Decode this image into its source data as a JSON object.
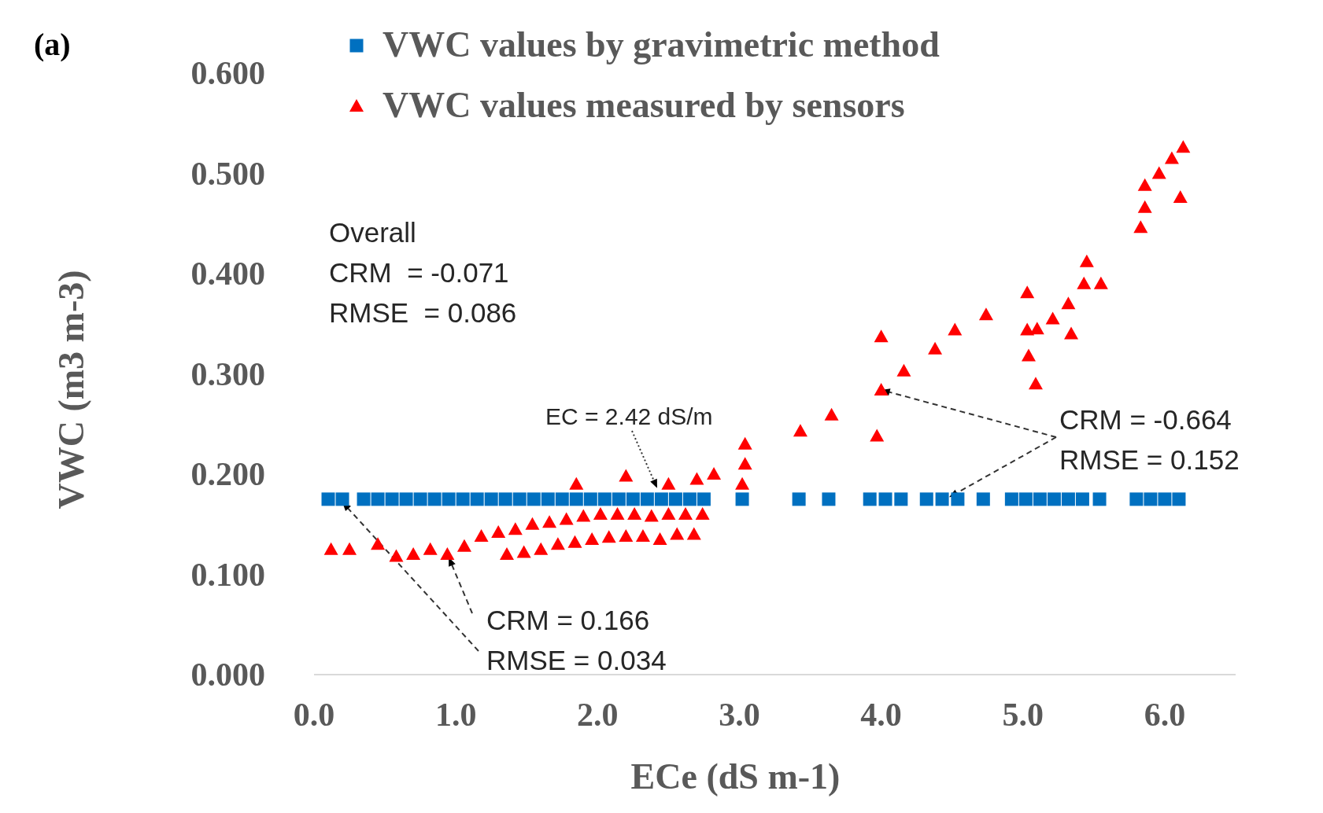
{
  "chart_data": {
    "type": "scatter",
    "xlabel": "ECe (dS m-1)",
    "ylabel": "VWC (m3 m-3)",
    "xlim": [
      0,
      6.5
    ],
    "ylim": [
      0,
      0.6
    ],
    "xticks": [
      {
        "value": 0,
        "label": "0.0"
      },
      {
        "value": 1,
        "label": "1.0"
      },
      {
        "value": 2,
        "label": "2.0"
      },
      {
        "value": 3,
        "label": "3.0"
      },
      {
        "value": 4,
        "label": "4.0"
      },
      {
        "value": 5,
        "label": "5.0"
      },
      {
        "value": 6,
        "label": "6.0"
      }
    ],
    "yticks": [
      {
        "value": 0,
        "label": "0.000"
      },
      {
        "value": 0.1,
        "label": "0.100"
      },
      {
        "value": 0.2,
        "label": "0.200"
      },
      {
        "value": 0.3,
        "label": "0.300"
      },
      {
        "value": 0.4,
        "label": "0.400"
      },
      {
        "value": 0.5,
        "label": "0.500"
      },
      {
        "value": 0.6,
        "label": "0.600"
      }
    ],
    "legend": "top",
    "grid": false,
    "annotations": [
      "(a)",
      "Overall\nCRM  = -0.071\nRMSE  = 0.086",
      "EC = 2.42 dS/m",
      {
        "text": "CRM = 0.166\nRMSE = 0.034",
        "x": 0.2,
        "y": 0.172
      },
      {
        "text": "CRM = -0.664\nRMSE = 0.152",
        "x": 4.0,
        "y": 0.284
      }
    ],
    "series": [
      {
        "name": "VWC values by gravimetric method",
        "color": "#0070c0",
        "marker": "square",
        "x": [
          0.1,
          0.2,
          0.35,
          0.45,
          0.55,
          0.65,
          0.75,
          0.85,
          0.95,
          1.05,
          1.15,
          1.25,
          1.35,
          1.45,
          1.55,
          1.65,
          1.75,
          1.85,
          1.95,
          2.05,
          2.15,
          2.25,
          2.35,
          2.45,
          2.55,
          2.65,
          2.75,
          3.02,
          3.42,
          3.63,
          3.92,
          4.03,
          4.14,
          4.32,
          4.43,
          4.54,
          4.72,
          4.92,
          5.02,
          5.12,
          5.22,
          5.32,
          5.42,
          5.54,
          5.8,
          5.9,
          6.0,
          6.1
        ],
        "values": [
          0.175,
          0.175,
          0.175,
          0.175,
          0.175,
          0.175,
          0.175,
          0.175,
          0.175,
          0.175,
          0.175,
          0.175,
          0.175,
          0.175,
          0.175,
          0.175,
          0.175,
          0.175,
          0.175,
          0.175,
          0.175,
          0.175,
          0.175,
          0.175,
          0.175,
          0.175,
          0.175,
          0.175,
          0.175,
          0.175,
          0.175,
          0.175,
          0.175,
          0.175,
          0.175,
          0.175,
          0.175,
          0.175,
          0.175,
          0.175,
          0.175,
          0.175,
          0.175,
          0.175,
          0.175,
          0.175,
          0.175,
          0.175
        ]
      },
      {
        "name": "VWC values measured by sensors",
        "color": "#ff0000",
        "marker": "triangle",
        "x": [
          0.12,
          0.25,
          0.45,
          0.58,
          0.7,
          0.82,
          0.94,
          1.06,
          1.18,
          1.3,
          1.42,
          1.54,
          1.66,
          1.78,
          1.9,
          2.02,
          2.14,
          2.26,
          2.38,
          2.5,
          2.62,
          2.74,
          1.36,
          1.48,
          1.6,
          1.72,
          1.84,
          1.96,
          2.08,
          2.2,
          2.32,
          2.44,
          2.56,
          2.68,
          1.85,
          2.2,
          2.5,
          2.7,
          2.82,
          3.04,
          3.04,
          3.02,
          3.43,
          3.65,
          3.97,
          4.0,
          4.16,
          4.0,
          4.38,
          4.52,
          4.74,
          5.03,
          5.03,
          5.04,
          5.09,
          5.1,
          5.21,
          5.32,
          5.43,
          5.45,
          5.55,
          5.34,
          5.83,
          5.86,
          5.86,
          5.96,
          6.05,
          6.13,
          6.11
        ],
        "values": [
          0.125,
          0.125,
          0.13,
          0.118,
          0.12,
          0.125,
          0.12,
          0.128,
          0.138,
          0.142,
          0.145,
          0.15,
          0.152,
          0.155,
          0.158,
          0.16,
          0.16,
          0.16,
          0.158,
          0.16,
          0.16,
          0.16,
          0.12,
          0.122,
          0.125,
          0.13,
          0.132,
          0.135,
          0.137,
          0.138,
          0.138,
          0.135,
          0.14,
          0.14,
          0.19,
          0.198,
          0.19,
          0.195,
          0.2,
          0.23,
          0.21,
          0.19,
          0.243,
          0.259,
          0.238,
          0.284,
          0.303,
          0.337,
          0.325,
          0.344,
          0.359,
          0.381,
          0.344,
          0.318,
          0.29,
          0.345,
          0.355,
          0.37,
          0.39,
          0.412,
          0.39,
          0.34,
          0.446,
          0.466,
          0.488,
          0.5,
          0.515,
          0.526,
          0.476
        ]
      }
    ]
  }
}
